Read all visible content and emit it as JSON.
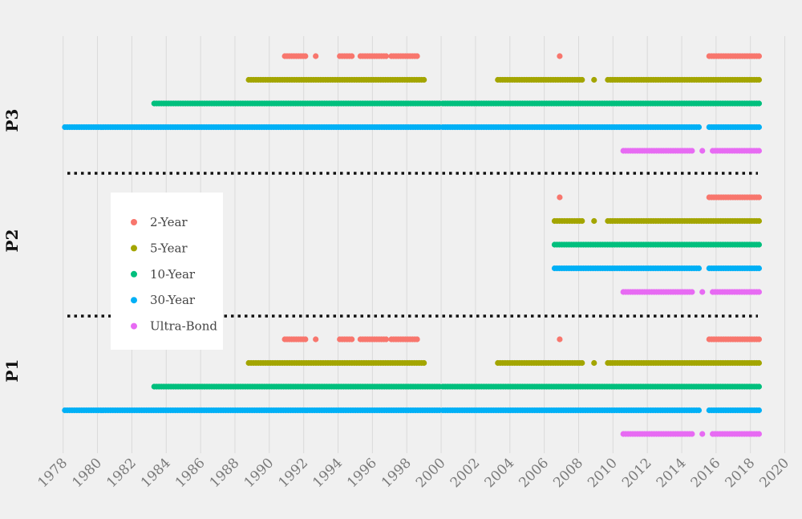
{
  "chart_data": {
    "type": "scatter",
    "title": "",
    "xlabel": "",
    "ylabel": "",
    "xlim": [
      1977.5,
      2020.3
    ],
    "x_ticks": [
      "1978",
      "1980",
      "1982",
      "1984",
      "1986",
      "1988",
      "1990",
      "1992",
      "1994",
      "1996",
      "1998",
      "2000",
      "2002",
      "2004",
      "2006",
      "2008",
      "2010",
      "2012",
      "2014",
      "2016",
      "2018",
      "2020"
    ],
    "grid": true,
    "legend_position": "left-middle",
    "panels": [
      "P3",
      "P2",
      "P1"
    ],
    "series": [
      {
        "name": "2-Year",
        "color": "#f8766d"
      },
      {
        "name": "5-Year",
        "color": "#a3a500"
      },
      {
        "name": "10-Year",
        "color": "#00bf7d"
      },
      {
        "name": "30-Year",
        "color": "#00b0f6"
      },
      {
        "name": "Ultra-Bond",
        "color": "#e76bf3"
      }
    ],
    "panel_data": [
      {
        "panel": "P3",
        "rows": [
          {
            "series": "2-Year",
            "ranges": [
              [
                1990.9,
                1992.1
              ],
              [
                1992.7,
                1992.7
              ],
              [
                1994.1,
                1994.8
              ],
              [
                1995.3,
                1996.8
              ],
              [
                1997.1,
                1998.6
              ],
              [
                2006.9,
                2006.9
              ],
              [
                2015.6,
                2018.5
              ]
            ]
          },
          {
            "series": "5-Year",
            "ranges": [
              [
                1988.8,
                1999.0
              ],
              [
                2003.3,
                2008.2
              ],
              [
                2008.9,
                2008.9
              ],
              [
                2009.7,
                2018.5
              ]
            ]
          },
          {
            "series": "10-Year",
            "ranges": [
              [
                1983.3,
                1999.9
              ],
              [
                2000.1,
                2018.5
              ]
            ]
          },
          {
            "series": "30-Year",
            "ranges": [
              [
                1978.1,
                1999.9
              ],
              [
                2000.1,
                2015.0
              ],
              [
                2015.6,
                2018.5
              ]
            ]
          },
          {
            "series": "Ultra-Bond",
            "ranges": [
              [
                2010.6,
                2014.6
              ],
              [
                2015.2,
                2015.2
              ],
              [
                2015.8,
                2018.5
              ]
            ]
          }
        ]
      },
      {
        "panel": "P2",
        "rows": [
          {
            "series": "2-Year",
            "ranges": [
              [
                2006.9,
                2006.9
              ],
              [
                2015.6,
                2018.5
              ]
            ]
          },
          {
            "series": "5-Year",
            "ranges": [
              [
                2006.6,
                2008.2
              ],
              [
                2008.9,
                2008.9
              ],
              [
                2009.7,
                2018.5
              ]
            ]
          },
          {
            "series": "10-Year",
            "ranges": [
              [
                2006.6,
                2018.5
              ]
            ]
          },
          {
            "series": "30-Year",
            "ranges": [
              [
                2006.6,
                2015.0
              ],
              [
                2015.6,
                2018.5
              ]
            ]
          },
          {
            "series": "Ultra-Bond",
            "ranges": [
              [
                2010.6,
                2014.6
              ],
              [
                2015.2,
                2015.2
              ],
              [
                2015.8,
                2018.5
              ]
            ]
          }
        ]
      },
      {
        "panel": "P1",
        "rows": [
          {
            "series": "2-Year",
            "ranges": [
              [
                1990.9,
                1992.1
              ],
              [
                1992.7,
                1992.7
              ],
              [
                1994.1,
                1994.8
              ],
              [
                1995.3,
                1996.8
              ],
              [
                1997.1,
                1998.6
              ],
              [
                2006.9,
                2006.9
              ],
              [
                2015.6,
                2018.5
              ]
            ]
          },
          {
            "series": "5-Year",
            "ranges": [
              [
                1988.8,
                1999.0
              ],
              [
                2003.3,
                2008.2
              ],
              [
                2008.9,
                2008.9
              ],
              [
                2009.7,
                2018.5
              ]
            ]
          },
          {
            "series": "10-Year",
            "ranges": [
              [
                1983.3,
                1999.9
              ],
              [
                2000.1,
                2018.5
              ]
            ]
          },
          {
            "series": "30-Year",
            "ranges": [
              [
                1978.1,
                1999.9
              ],
              [
                2000.1,
                2015.0
              ],
              [
                2015.6,
                2018.5
              ]
            ]
          },
          {
            "series": "Ultra-Bond",
            "ranges": [
              [
                2010.6,
                2014.6
              ],
              [
                2015.2,
                2015.2
              ],
              [
                2015.8,
                2018.5
              ]
            ]
          }
        ]
      }
    ]
  }
}
